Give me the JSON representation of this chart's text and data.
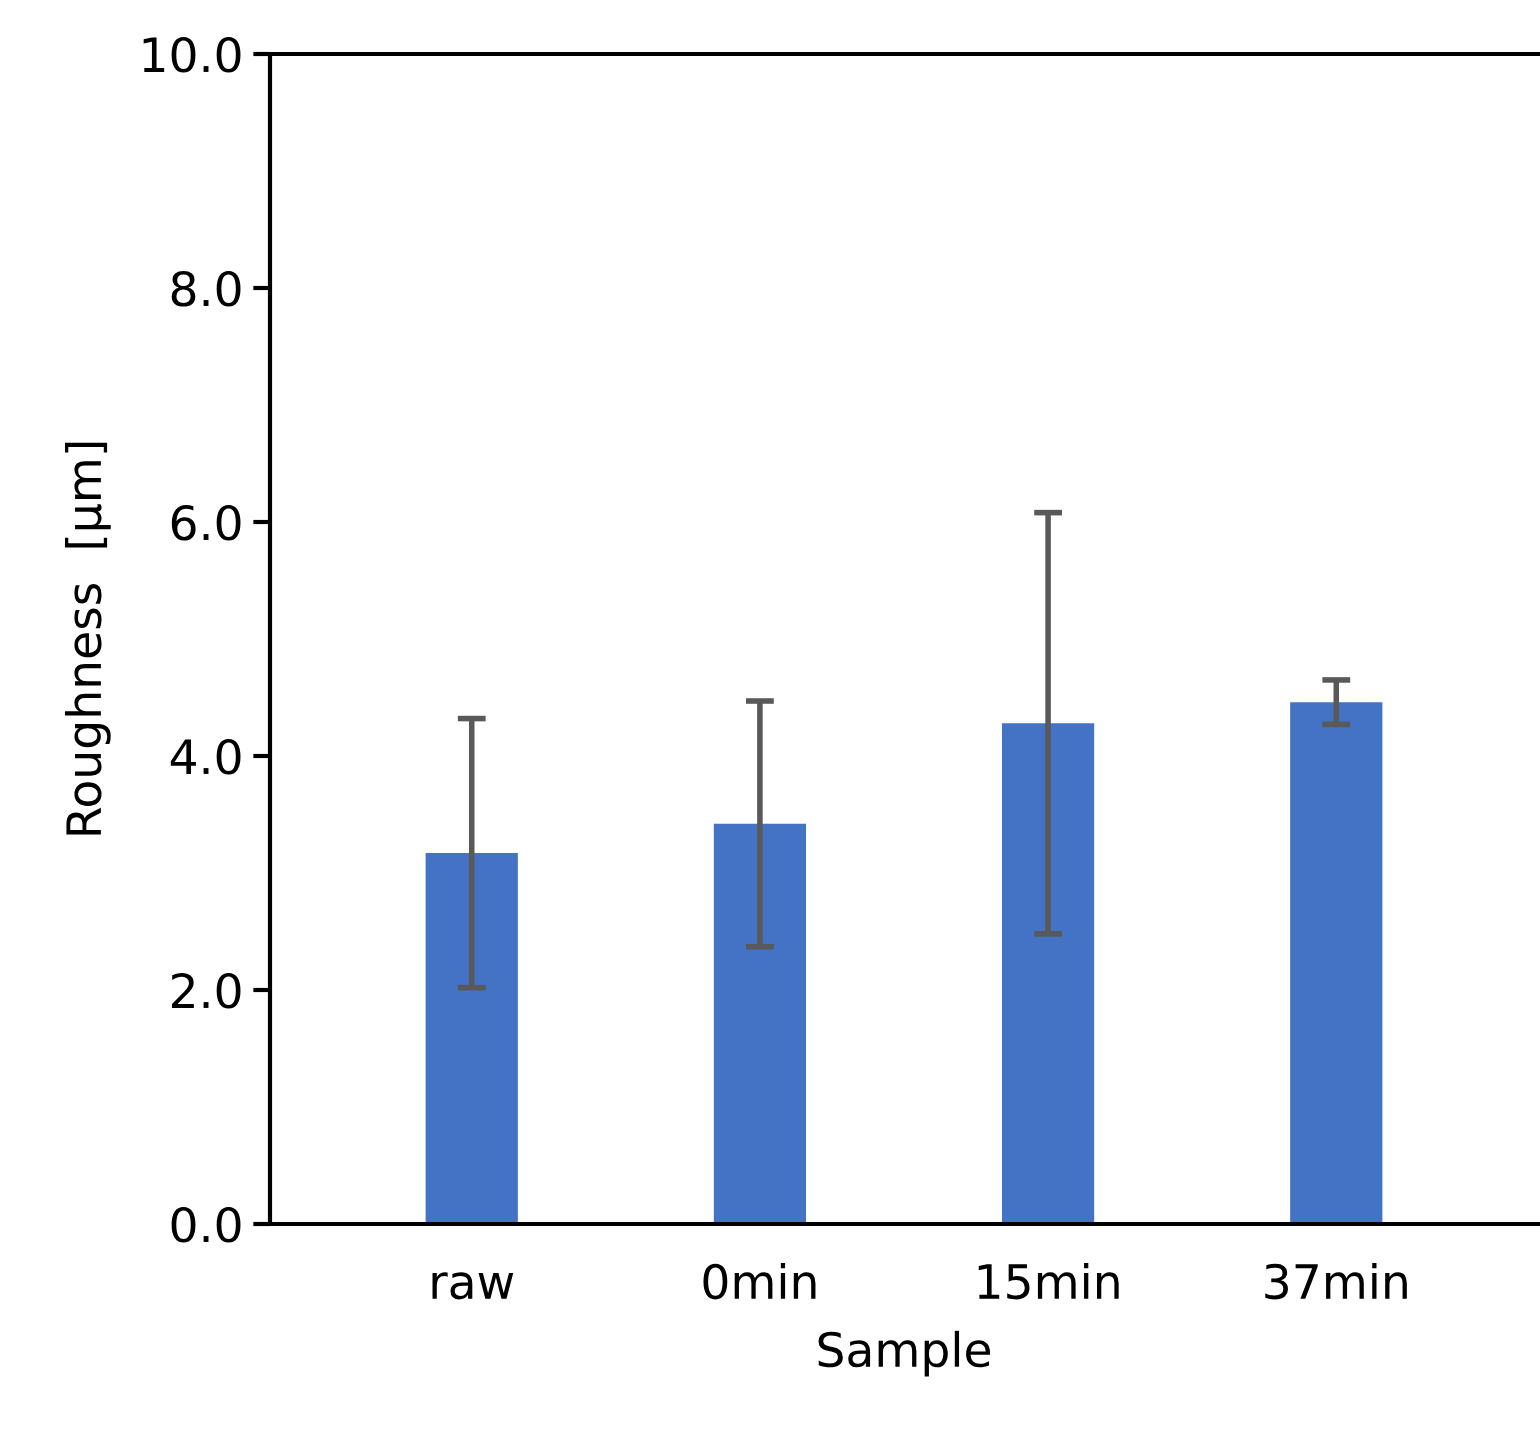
{
  "chart_data": {
    "type": "bar",
    "xlabel": "Sample",
    "ylabel": "Roughness  [µm]",
    "categories": [
      "raw",
      "0min",
      "15min",
      "37min"
    ],
    "values": [
      3.17,
      3.42,
      4.28,
      4.46
    ],
    "errors": [
      1.15,
      1.05,
      1.8,
      0.19
    ],
    "color": "#4472c4",
    "ylim": [
      0,
      10
    ],
    "yticks": [
      {
        "value": 0,
        "label": "0.0"
      },
      {
        "value": 2,
        "label": "2.0"
      },
      {
        "value": 4,
        "label": "4.0"
      },
      {
        "value": 6,
        "label": "6.0"
      },
      {
        "value": 8,
        "label": "8.0"
      },
      {
        "value": 10,
        "label": "10.0"
      }
    ],
    "grid": false
  }
}
